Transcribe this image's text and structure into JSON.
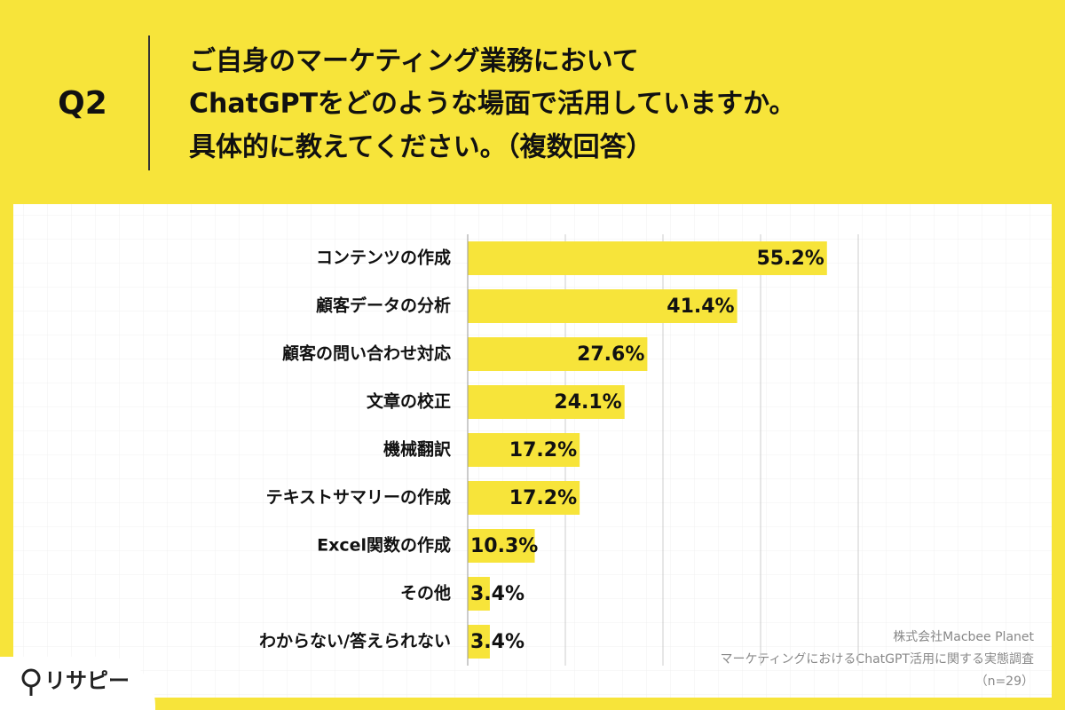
{
  "header": {
    "question": "Q2",
    "title_lines": [
      "ご自身のマーケティング業務において",
      "ChatGPTをどのような場面で活用していますか。",
      "具体的に教えてください。（複数回答）"
    ]
  },
  "chart_data": {
    "type": "bar",
    "orientation": "horizontal",
    "categories": [
      "コンテンツの作成",
      "顧客データの分析",
      "顧客の問い合わせ対応",
      "文章の校正",
      "機械翻訳",
      "テキストサマリーの作成",
      "Excel関数の作成",
      "その他",
      "わからない/答えられない"
    ],
    "values": [
      55.2,
      41.4,
      27.6,
      24.1,
      17.2,
      17.2,
      10.3,
      3.4,
      3.4
    ],
    "value_labels": [
      "55.2%",
      "41.4%",
      "27.6%",
      "24.1%",
      "17.2%",
      "17.2%",
      "10.3%",
      "3.4%",
      "3.4%"
    ],
    "color": "#f7e43a",
    "xlim": [
      0,
      60
    ],
    "xticks": [
      0,
      15,
      30,
      45,
      60
    ],
    "grid": true
  },
  "source": [
    "株式会社Macbee Planet",
    "マーケティングにおけるChatGPT活用に関する実態調査",
    "（n=29）"
  ],
  "logo": "リサピー"
}
